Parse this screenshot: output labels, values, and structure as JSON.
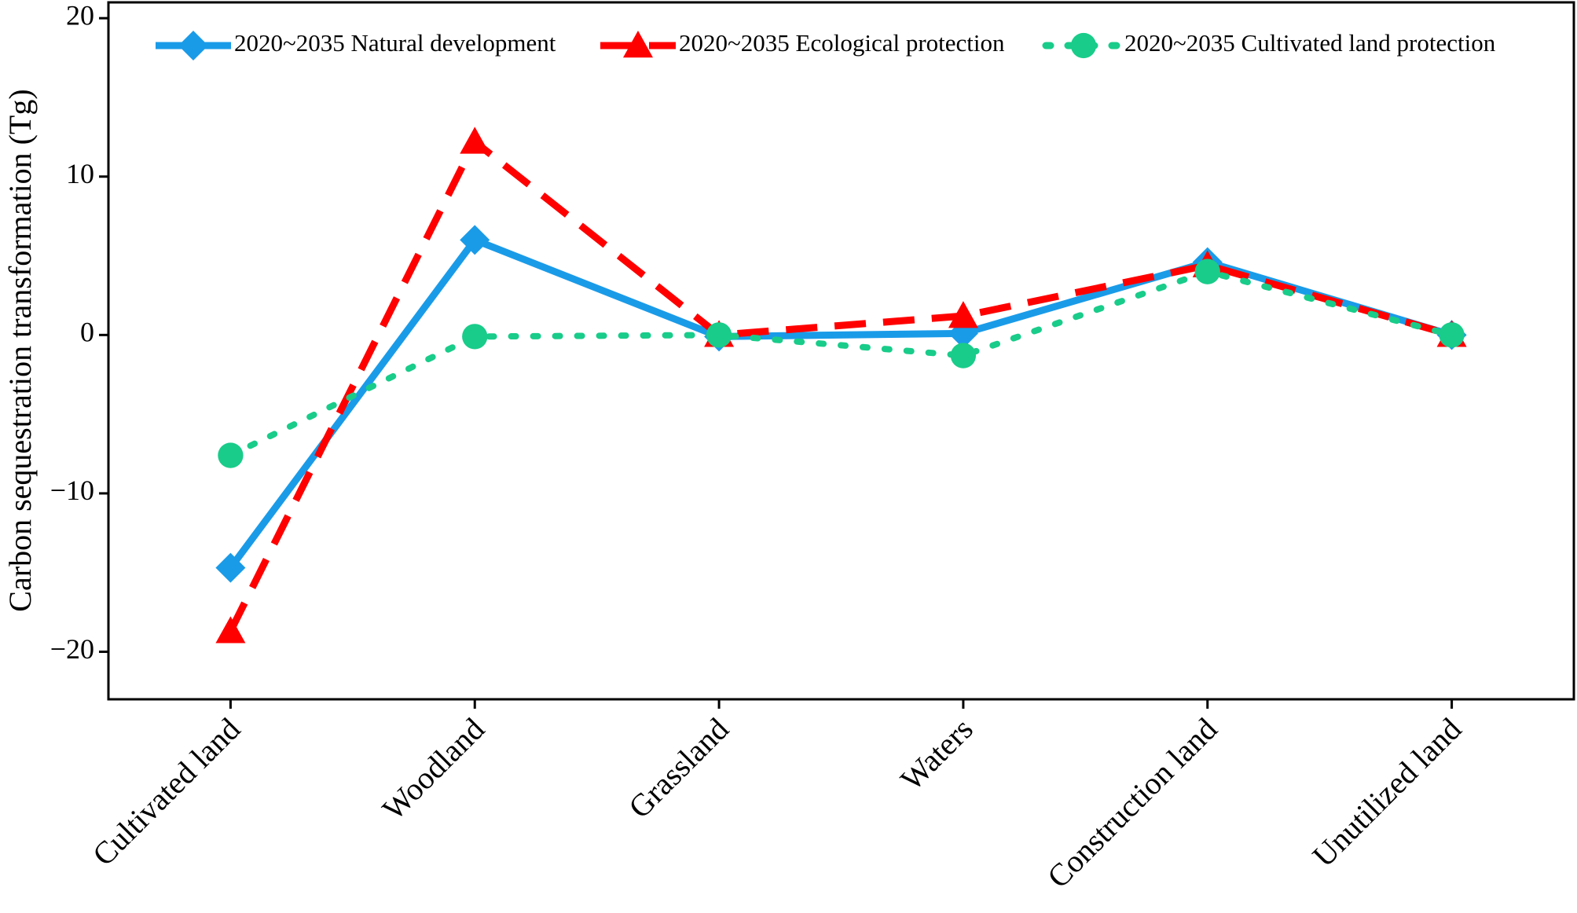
{
  "chart_data": {
    "type": "line",
    "y_label": "Carbon sequestration transformation (Tg)",
    "categories": [
      "Cultivated land",
      "Woodland",
      "Grassland",
      "Waters",
      "Construction land",
      "Unutilized land"
    ],
    "series": [
      {
        "name": "2020~2035 Natural development",
        "color": "#1a9be8",
        "linestyle": "solid",
        "marker": "diamond",
        "values": [
          -14.7,
          6.0,
          -0.1,
          0.1,
          4.6,
          0
        ]
      },
      {
        "name": "2020~2035 Ecological protection",
        "color": "#ff0000",
        "linestyle": "dashed",
        "marker": "triangle",
        "values": [
          -18.7,
          12.2,
          0,
          1.2,
          4.4,
          0
        ]
      },
      {
        "name": "2020~2035 Cultivated land protection",
        "color": "#19cc8a",
        "linestyle": "dotted",
        "marker": "circle",
        "values": [
          -7.6,
          -0.1,
          0,
          -1.3,
          4.0,
          0
        ]
      }
    ],
    "ylim": [
      -23,
      21
    ],
    "yticks": [
      {
        "value": -20,
        "label": "−20"
      },
      {
        "value": -10,
        "label": "−10"
      },
      0,
      10,
      20
    ],
    "grid": false,
    "legend": "top"
  }
}
